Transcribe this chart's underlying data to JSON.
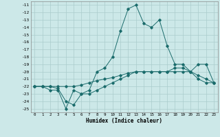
{
  "xlabel": "Humidex (Indice chaleur)",
  "bg_color": "#cce8e8",
  "grid_color": "#aacccc",
  "line_color": "#1a6b6b",
  "xlim": [
    -0.5,
    23.5
  ],
  "ylim": [
    -25.5,
    -10.5
  ],
  "xticks": [
    0,
    1,
    2,
    3,
    4,
    5,
    6,
    7,
    8,
    9,
    10,
    11,
    12,
    13,
    14,
    15,
    16,
    17,
    18,
    19,
    20,
    21,
    22,
    23
  ],
  "yticks": [
    -11,
    -12,
    -13,
    -14,
    -15,
    -16,
    -17,
    -18,
    -19,
    -20,
    -21,
    -22,
    -23,
    -24,
    -25
  ],
  "series": [
    {
      "x": [
        0,
        1,
        2,
        3,
        4,
        5,
        6,
        7,
        8,
        9,
        10,
        11,
        12,
        13,
        14,
        15,
        16,
        17,
        18,
        19,
        20,
        21,
        22,
        23
      ],
      "y": [
        -22,
        -22,
        -22.5,
        -22.5,
        -25,
        -22.5,
        -23,
        -22.5,
        -20,
        -19.5,
        -18,
        -14.5,
        -11.5,
        -11,
        -13.5,
        -14,
        -13,
        -16.5,
        -19,
        -19,
        -20,
        -19,
        -19,
        -21.5
      ]
    },
    {
      "x": [
        0,
        1,
        2,
        3,
        4,
        5,
        6,
        7,
        8,
        9,
        10,
        11,
        12,
        13,
        14,
        15,
        16,
        17,
        18,
        19,
        20,
        21,
        22,
        23
      ],
      "y": [
        -22,
        -22,
        -22,
        -22.3,
        -24,
        -24.5,
        -23,
        -23,
        -22.5,
        -22,
        -21.5,
        -21,
        -20.5,
        -20,
        -20,
        -20,
        -20,
        -20,
        -19.5,
        -19.5,
        -20,
        -21,
        -21.5,
        -21.5
      ]
    },
    {
      "x": [
        0,
        1,
        2,
        3,
        4,
        5,
        6,
        7,
        8,
        9,
        10,
        11,
        12,
        13,
        14,
        15,
        16,
        17,
        18,
        19,
        20,
        21,
        22,
        23
      ],
      "y": [
        -22,
        -22,
        -22,
        -22,
        -22,
        -22,
        -21.8,
        -21.5,
        -21.2,
        -21,
        -20.8,
        -20.5,
        -20.2,
        -20,
        -20,
        -20,
        -20,
        -20,
        -20,
        -20,
        -20,
        -20.5,
        -21,
        -21.5
      ]
    }
  ]
}
